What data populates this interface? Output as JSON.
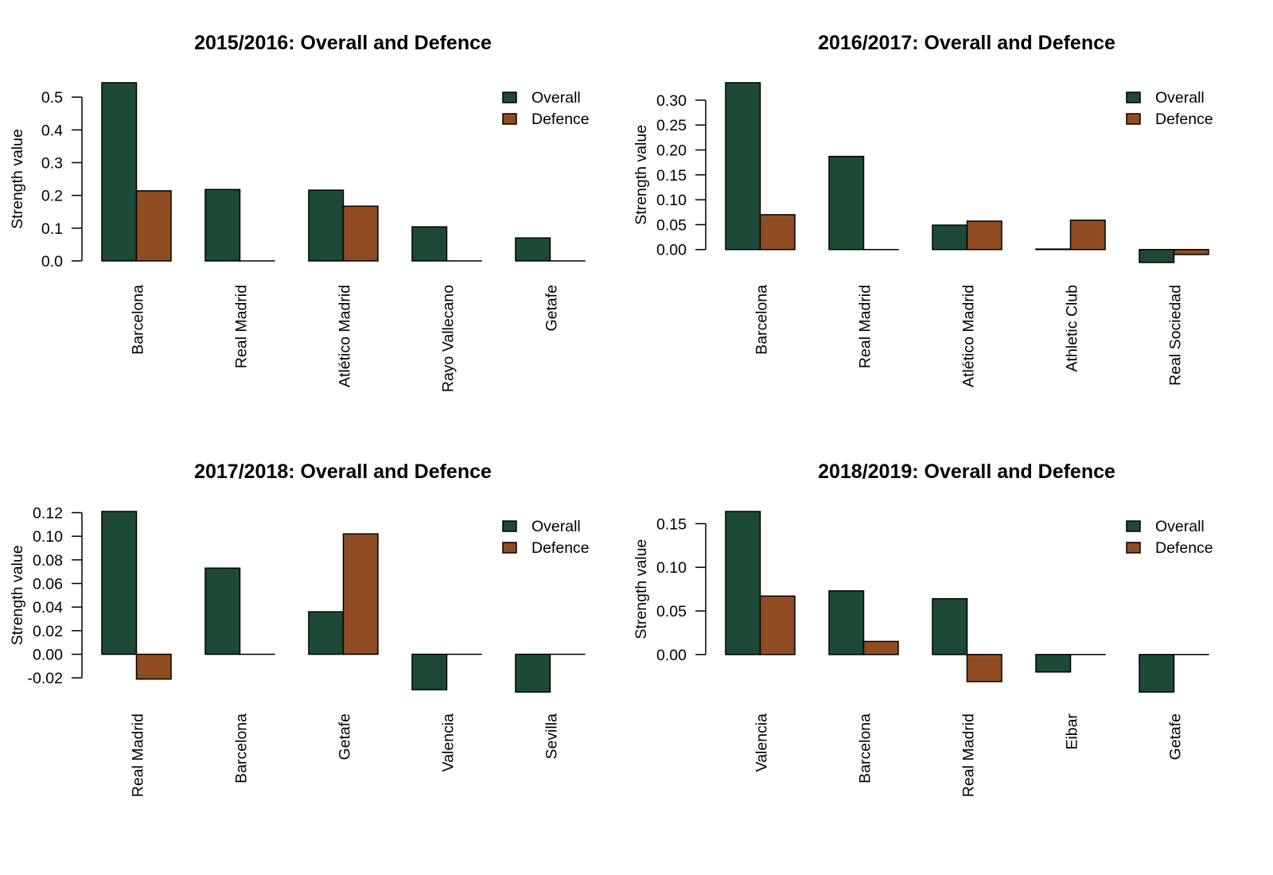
{
  "chart_data": [
    {
      "type": "bar",
      "title": "2015/2016: Overall and Defence",
      "xlabel": "",
      "ylabel": "Strength value",
      "categories": [
        "Barcelona",
        "Real Madrid",
        "Atlético Madrid",
        "Rayo Vallecano",
        "Getafe"
      ],
      "series": [
        {
          "name": "Overall",
          "color": "#1d4a37",
          "values": [
            0.544,
            0.218,
            0.216,
            0.104,
            0.07
          ]
        },
        {
          "name": "Defence",
          "color": "#8f4c22",
          "values": [
            0.214,
            0.0,
            0.167,
            0.0,
            0.0
          ]
        }
      ],
      "yticks": [
        0.0,
        0.1,
        0.2,
        0.3,
        0.4,
        0.5
      ],
      "ytick_labels": [
        "0.0",
        "0.1",
        "0.2",
        "0.3",
        "0.4",
        "0.5"
      ],
      "ylim": [
        0.0,
        0.544
      ],
      "grid": false,
      "legend": "top-right"
    },
    {
      "type": "bar",
      "title": "2016/2017: Overall and Defence",
      "xlabel": "",
      "ylabel": "Strength value",
      "categories": [
        "Barcelona",
        "Real Madrid",
        "Atlético Madrid",
        "Athletic Club",
        "Real Sociedad"
      ],
      "series": [
        {
          "name": "Overall",
          "color": "#1d4a37",
          "values": [
            0.335,
            0.187,
            0.049,
            0.001,
            -0.026
          ]
        },
        {
          "name": "Defence",
          "color": "#8f4c22",
          "values": [
            0.07,
            0.0,
            0.057,
            0.059,
            -0.01
          ]
        }
      ],
      "yticks": [
        0.0,
        0.05,
        0.1,
        0.15,
        0.2,
        0.25,
        0.3
      ],
      "ytick_labels": [
        "0.00",
        "0.05",
        "0.10",
        "0.15",
        "0.20",
        "0.25",
        "0.30"
      ],
      "ylim": [
        -0.026,
        0.335
      ],
      "grid": false,
      "legend": "top-right"
    },
    {
      "type": "bar",
      "title": "2017/2018: Overall and Defence",
      "xlabel": "",
      "ylabel": "Strength value",
      "categories": [
        "Real Madrid",
        "Barcelona",
        "Getafe",
        "Valencia",
        "Sevilla"
      ],
      "series": [
        {
          "name": "Overall",
          "color": "#1d4a37",
          "values": [
            0.121,
            0.073,
            0.036,
            -0.03,
            -0.032
          ]
        },
        {
          "name": "Defence",
          "color": "#8f4c22",
          "values": [
            -0.021,
            0.0,
            0.102,
            0.0,
            0.0
          ]
        }
      ],
      "yticks": [
        -0.02,
        0.0,
        0.02,
        0.04,
        0.06,
        0.08,
        0.1,
        0.12
      ],
      "ytick_labels": [
        "-0.02",
        "0.00",
        "0.02",
        "0.04",
        "0.06",
        "0.08",
        "0.10",
        "0.12"
      ],
      "ylim": [
        -0.032,
        0.121
      ],
      "grid": false,
      "legend": "top-right"
    },
    {
      "type": "bar",
      "title": "2018/2019: Overall and Defence",
      "xlabel": "",
      "ylabel": "Strength value",
      "categories": [
        "Valencia",
        "Barcelona",
        "Real Madrid",
        "Eibar",
        "Getafe"
      ],
      "series": [
        {
          "name": "Overall",
          "color": "#1d4a37",
          "values": [
            0.164,
            0.073,
            0.064,
            -0.02,
            -0.043
          ]
        },
        {
          "name": "Defence",
          "color": "#8f4c22",
          "values": [
            0.067,
            0.015,
            -0.031,
            0.0,
            0.0
          ]
        }
      ],
      "yticks": [
        0.0,
        0.05,
        0.1,
        0.15
      ],
      "ytick_labels": [
        "0.00",
        "0.05",
        "0.10",
        "0.15"
      ],
      "ylim": [
        -0.043,
        0.164
      ],
      "grid": false,
      "legend": "top-right"
    }
  ]
}
